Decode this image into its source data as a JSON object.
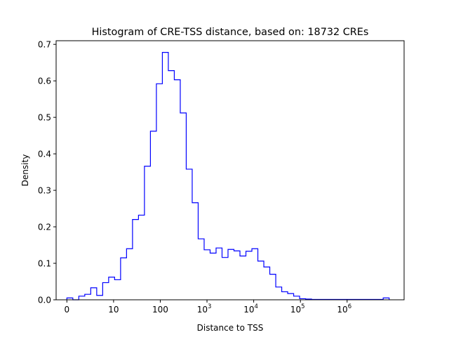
{
  "chart_data": {
    "type": "histogram",
    "title": "Histogram of CRE-TSS distance, based on: 18732 CREs",
    "xlabel": "Distance to TSS",
    "ylabel": "Density",
    "x_scale": "log10(distance + 1)",
    "xlim": [
      -0.23,
      7.22
    ],
    "ylim": [
      0,
      0.71
    ],
    "x_ticks": [
      {
        "value": 0,
        "label": "0",
        "base": "",
        "exp": ""
      },
      {
        "value": 1,
        "label": "10",
        "base": "",
        "exp": ""
      },
      {
        "value": 2,
        "label": "100",
        "base": "",
        "exp": ""
      },
      {
        "value": 3,
        "label": "",
        "base": "10",
        "exp": "3"
      },
      {
        "value": 4,
        "label": "",
        "base": "10",
        "exp": "4"
      },
      {
        "value": 5,
        "label": "",
        "base": "10",
        "exp": "5"
      },
      {
        "value": 6,
        "label": "",
        "base": "10",
        "exp": "6"
      }
    ],
    "y_ticks": [
      {
        "value": 0.0,
        "label": "0.0"
      },
      {
        "value": 0.1,
        "label": "0.1"
      },
      {
        "value": 0.2,
        "label": "0.2"
      },
      {
        "value": 0.3,
        "label": "0.3"
      },
      {
        "value": 0.4,
        "label": "0.4"
      },
      {
        "value": 0.5,
        "label": "0.5"
      },
      {
        "value": 0.6,
        "label": "0.6"
      },
      {
        "value": 0.7,
        "label": "0.7"
      }
    ],
    "bin_range": [
      0,
      6.9
    ],
    "bin_density": [
      0.005,
      0.0,
      0.01,
      0.015,
      0.033,
      0.012,
      0.047,
      0.062,
      0.055,
      0.115,
      0.14,
      0.22,
      0.232,
      0.366,
      0.462,
      0.592,
      0.678,
      0.628,
      0.603,
      0.512,
      0.358,
      0.266,
      0.167,
      0.137,
      0.128,
      0.142,
      0.116,
      0.138,
      0.134,
      0.12,
      0.133,
      0.14,
      0.106,
      0.09,
      0.07,
      0.035,
      0.022,
      0.017,
      0.01,
      0.003,
      0.002,
      0.001,
      0.001,
      0.001,
      0.001,
      0.001,
      0.001,
      0.001,
      0.001,
      0.001,
      0.001,
      0.001,
      0.001,
      0.005
    ],
    "series_color": "#0000ff",
    "grid": false,
    "legend": "none"
  }
}
